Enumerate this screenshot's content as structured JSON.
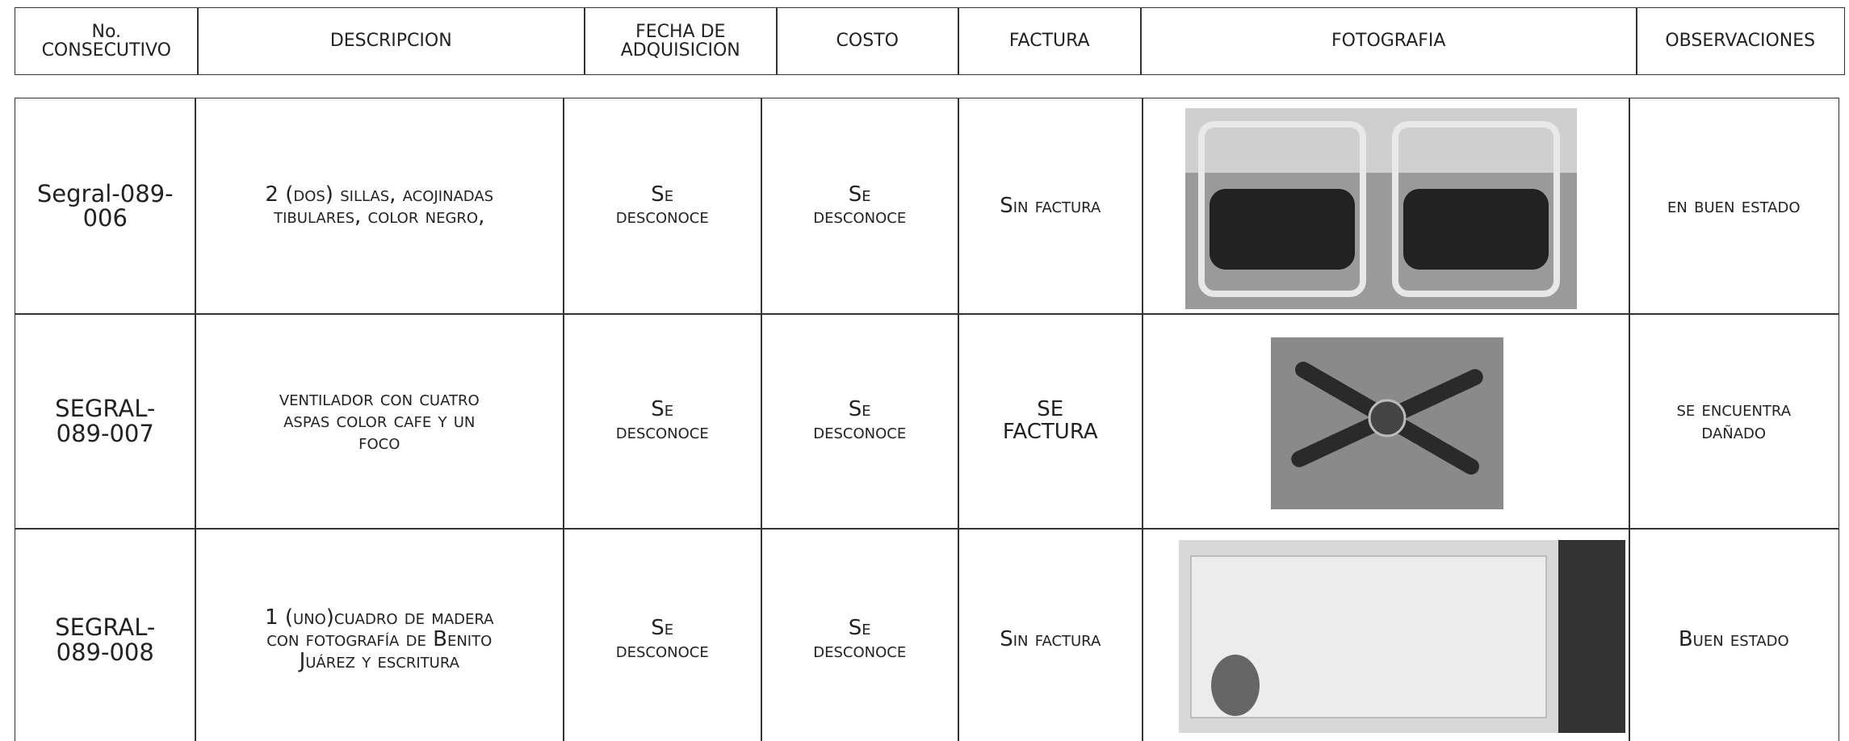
{
  "header": {
    "columns": [
      "No.\nCONSECUTIVO",
      "DESCRIPCION",
      "FECHA DE\nADQUISICION",
      "COSTO",
      "FACTURA",
      "FOTOGRAFIA",
      "OBSERVACIONES"
    ]
  },
  "rows": [
    {
      "id": "Segral-089-\n006",
      "description": "2 (dos) sillas, acojinadas\ntibulares,  color negro,",
      "date": "Se\ndesconoce",
      "cost": "Se\ndesconoce",
      "invoice": "Sin factura",
      "notes": "en buen estado"
    },
    {
      "id": "SEGRAL-\n089-007",
      "description": "ventilador con cuatro\naspas color cafe y un\nfoco",
      "date": "Se\ndesconoce",
      "cost": "Se\ndesconoce",
      "invoice": "SE\nFACTURA",
      "notes": "se encuentra\ndañado"
    },
    {
      "id": "SEGRAL-\n089-008",
      "description": "1 (uno)cuadro de madera\ncon fotografía de Benito\nJuárez y escritura",
      "date": "Se\ndesconoce",
      "cost": "Se\ndesconoce",
      "invoice": "Sin factura",
      "notes": "Buen estado"
    }
  ]
}
